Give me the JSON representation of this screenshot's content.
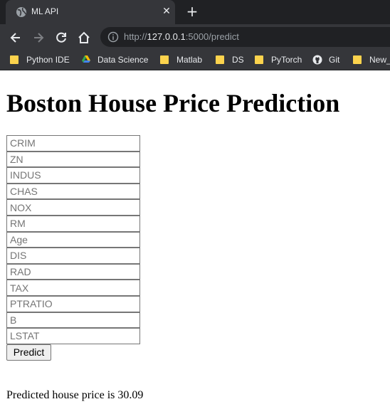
{
  "browser": {
    "tab": {
      "title": "ML API",
      "close_glyph": "✕"
    },
    "new_tab_glyph": "+",
    "address": {
      "scheme": "http://",
      "host": "127.0.0.1",
      "rest": ":5000/predict"
    },
    "bookmarks": [
      {
        "label": "Python IDE",
        "icon": "folder-icon"
      },
      {
        "label": "Data Science",
        "icon": "google-drive-icon"
      },
      {
        "label": "Matlab",
        "icon": "folder-icon"
      },
      {
        "label": "DS",
        "icon": "folder-icon"
      },
      {
        "label": "PyTorch",
        "icon": "folder-icon"
      },
      {
        "label": "Git",
        "icon": "github-icon"
      },
      {
        "label": "New_",
        "icon": "folder-icon"
      }
    ]
  },
  "page": {
    "title": "Boston House Price Prediction",
    "fields": [
      {
        "name": "CRIM",
        "placeholder": "CRIM"
      },
      {
        "name": "ZN",
        "placeholder": "ZN"
      },
      {
        "name": "INDUS",
        "placeholder": "INDUS"
      },
      {
        "name": "CHAS",
        "placeholder": "CHAS"
      },
      {
        "name": "NOX",
        "placeholder": "NOX"
      },
      {
        "name": "RM",
        "placeholder": "RM"
      },
      {
        "name": "Age",
        "placeholder": "Age"
      },
      {
        "name": "DIS",
        "placeholder": "DIS"
      },
      {
        "name": "RAD",
        "placeholder": "RAD"
      },
      {
        "name": "TAX",
        "placeholder": "TAX"
      },
      {
        "name": "PTRATIO",
        "placeholder": "PTRATIO"
      },
      {
        "name": "B",
        "placeholder": "B"
      },
      {
        "name": "LSTAT",
        "placeholder": "LSTAT"
      }
    ],
    "submit_label": "Predict",
    "result_text": "Predicted house price is 30.09"
  },
  "colors": {
    "chrome_dark": "#202124",
    "chrome_tab": "#35363a",
    "chrome_text": "#e8eaed",
    "folder": "#fcd34d"
  }
}
